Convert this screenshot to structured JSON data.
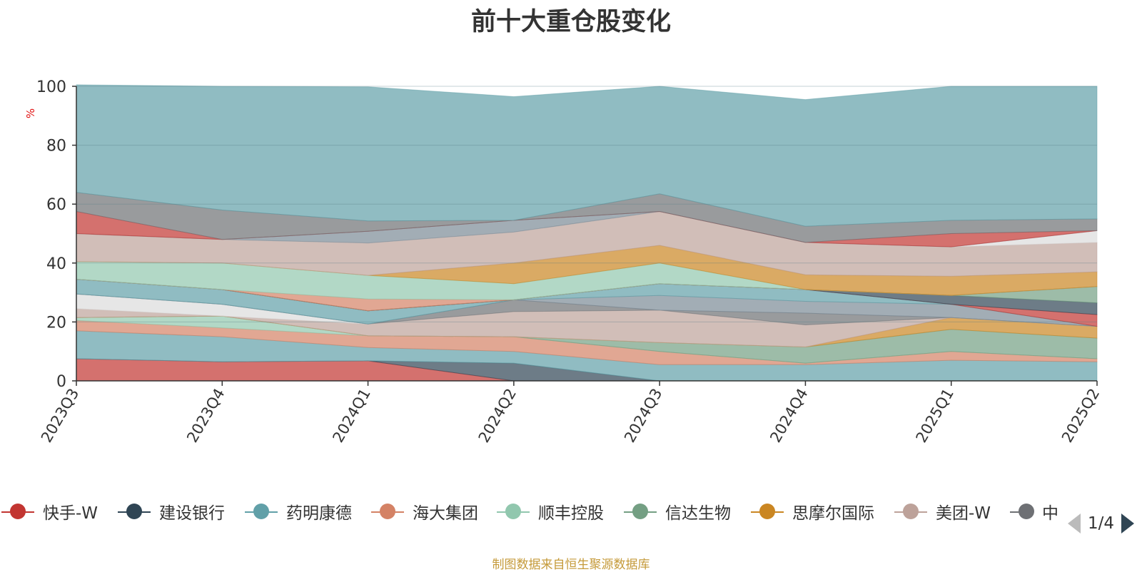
{
  "title": "前十大重仓股变化",
  "source_note": "制图数据来自恒生聚源数据库",
  "pager": {
    "current": "1/4"
  },
  "legend": {
    "items": [
      {
        "label": "快手-W",
        "color": "#c23531"
      },
      {
        "label": "建设银行",
        "color": "#2f4554"
      },
      {
        "label": "药明康德",
        "color": "#61a0a8"
      },
      {
        "label": "海大集团",
        "color": "#d48265"
      },
      {
        "label": "顺丰控股",
        "color": "#91c7ae"
      },
      {
        "label": "信达生物",
        "color": "#749f83"
      },
      {
        "label": "思摩尔国际",
        "color": "#ca8622"
      },
      {
        "label": "美团-W",
        "color": "#bda29a"
      },
      {
        "label": "中",
        "color": "#6e7074"
      }
    ]
  },
  "chart_data": {
    "type": "area",
    "title": "前十大重仓股变化",
    "ylabel": "%",
    "ylim": [
      0,
      100
    ],
    "yticks": [
      0,
      20,
      40,
      60,
      80,
      100
    ],
    "categories": [
      "2023Q3",
      "2023Q4",
      "2024Q1",
      "2024Q2",
      "2024Q3",
      "2024Q4",
      "2025Q1",
      "2025Q2"
    ],
    "grid": true,
    "bands": [
      {
        "color": "#c23531",
        "values": [
          7.5,
          6.5,
          6.8,
          0,
          0,
          0,
          0,
          0
        ]
      },
      {
        "color": "#2f4554",
        "values": [
          0,
          0,
          0,
          6,
          0,
          0,
          0,
          0
        ]
      },
      {
        "color": "#61a0a8",
        "values": [
          9.5,
          8.5,
          4.5,
          4,
          5.5,
          5.5,
          7,
          6.5
        ]
      },
      {
        "color": "#d48265",
        "values": [
          3.5,
          3,
          4,
          5,
          4.5,
          0.5,
          3,
          1
        ]
      },
      {
        "color": "#91c7ae",
        "values": [
          1,
          4,
          0,
          0,
          0,
          0,
          0,
          0
        ]
      },
      {
        "color": "#749f83",
        "values": [
          0,
          0,
          0,
          0,
          3,
          5.5,
          7.5,
          7
        ]
      },
      {
        "color": "#ca8622",
        "values": [
          0,
          0,
          0,
          0,
          0,
          0,
          4,
          4
        ]
      },
      {
        "color": "#bda29a",
        "values": [
          3,
          0,
          4,
          8.5,
          11,
          7.5,
          0,
          0
        ]
      },
      {
        "color": "#dcdcdc",
        "values": [
          5,
          4,
          0,
          0,
          0,
          0,
          0,
          0
        ]
      },
      {
        "color": "#6e7074",
        "values": [
          0,
          0,
          0,
          4,
          0,
          4,
          0,
          0
        ]
      },
      {
        "color": "#7a8a96",
        "values": [
          0,
          0,
          0,
          0,
          5,
          4,
          4.5,
          0
        ]
      },
      {
        "color": "#61a0a8",
        "values": [
          5,
          5,
          4.5,
          0,
          4,
          4,
          0,
          0
        ]
      },
      {
        "color": "#c23531",
        "values": [
          0,
          0,
          0,
          0,
          0,
          0,
          0,
          4
        ]
      },
      {
        "color": "#2f4554",
        "values": [
          0,
          0,
          0,
          0,
          0,
          0,
          3,
          4
        ]
      },
      {
        "color": "#749f83",
        "values": [
          0,
          0,
          0,
          0,
          0,
          0,
          0,
          5.5
        ]
      },
      {
        "color": "#d48265",
        "values": [
          0,
          0,
          4,
          0,
          0,
          0,
          0,
          0
        ]
      },
      {
        "color": "#91c7ae",
        "values": [
          6,
          9,
          8,
          5.5,
          7,
          0,
          0,
          0
        ]
      },
      {
        "color": "#ca8622",
        "values": [
          0,
          0,
          0,
          7,
          6,
          5,
          6.5,
          5
        ]
      },
      {
        "color": "#bda29a",
        "values": [
          9.5,
          8,
          11,
          10.5,
          11.5,
          11,
          10,
          10
        ]
      },
      {
        "color": "#dcdcdc",
        "values": [
          0,
          0,
          0,
          0,
          0,
          0,
          0,
          4
        ]
      },
      {
        "color": "#7a8a96",
        "values": [
          0,
          0,
          4,
          4,
          0,
          0,
          0,
          0
        ]
      },
      {
        "color": "#c23531",
        "values": [
          7.5,
          0,
          0,
          0,
          0,
          0,
          4.5,
          0
        ]
      },
      {
        "color": "#6e7074",
        "values": [
          6.5,
          10,
          3.5,
          0,
          6,
          5.5,
          4.5,
          4
        ]
      },
      {
        "color": "#61a0a8",
        "values": [
          36.5,
          42,
          45.5,
          42,
          36.5,
          43,
          45.5,
          45
        ]
      }
    ]
  }
}
